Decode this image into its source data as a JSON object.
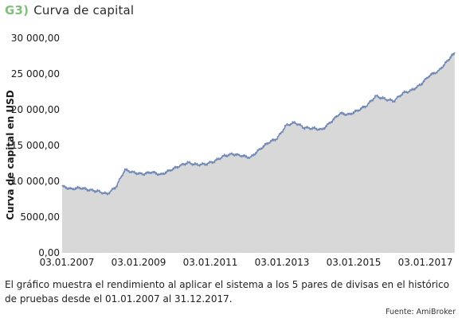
{
  "header": {
    "code": "G3)",
    "title": "Curva de capital"
  },
  "caption": "El gráfico muestra el rendimiento al aplicar el sistema a los 5 pares de divisas en el histórico de pruebas desde el 01.01.2007 al 31.12.2017.",
  "source": "Fuente: AmiBroker",
  "colors": {
    "line": "#6f88b8",
    "area": "#d8d8d8",
    "title_code": "#7fbf7a"
  },
  "chart_data": {
    "type": "area",
    "title": "Curva de capital",
    "xlabel": "",
    "ylabel": "Curva de capital en USD",
    "x_range": [
      2007.0,
      2018.0
    ],
    "ylim": [
      0,
      30000
    ],
    "y_ticks": [
      0,
      5000,
      10000,
      15000,
      20000,
      25000,
      30000
    ],
    "y_tick_labels": [
      "0,00",
      "5000,00",
      "10 000,00",
      "15 000,00",
      "20 000,00",
      "25 000,00",
      "30 000,00"
    ],
    "x_ticks": [
      2007,
      2009,
      2011,
      2013,
      2015,
      2017
    ],
    "x_tick_labels": [
      "03.01.2007",
      "03.01.2009",
      "03.01.2011",
      "03.01.2013",
      "03.01.2015",
      "03.01.2017"
    ],
    "grid": false,
    "series": [
      {
        "x": [
          2007.0,
          2007.25,
          2007.5,
          2007.75,
          2008.0,
          2008.25,
          2008.5,
          2008.75,
          2009.0,
          2009.25,
          2009.5,
          2009.75,
          2010.0,
          2010.25,
          2010.5,
          2010.75,
          2011.0,
          2011.25,
          2011.5,
          2011.75,
          2012.0,
          2012.25,
          2012.5,
          2012.75,
          2013.0,
          2013.25,
          2013.5,
          2013.75,
          2014.0,
          2014.25,
          2014.5,
          2014.75,
          2015.0,
          2015.25,
          2015.5,
          2015.75,
          2016.0,
          2016.25,
          2016.5,
          2016.75,
          2017.0,
          2017.25,
          2017.5,
          2017.75,
          2017.95
        ],
        "y": [
          9300,
          8900,
          9100,
          8800,
          8600,
          8200,
          9200,
          11600,
          11200,
          11000,
          11300,
          10900,
          11500,
          12100,
          12600,
          12300,
          12400,
          12800,
          13500,
          13800,
          13600,
          13300,
          14400,
          15400,
          16000,
          17800,
          18200,
          17500,
          17400,
          17200,
          18300,
          19500,
          19300,
          19900,
          20600,
          21900,
          21500,
          21200,
          22300,
          22700,
          23500,
          24800,
          25400,
          26800,
          28000
        ]
      }
    ]
  }
}
